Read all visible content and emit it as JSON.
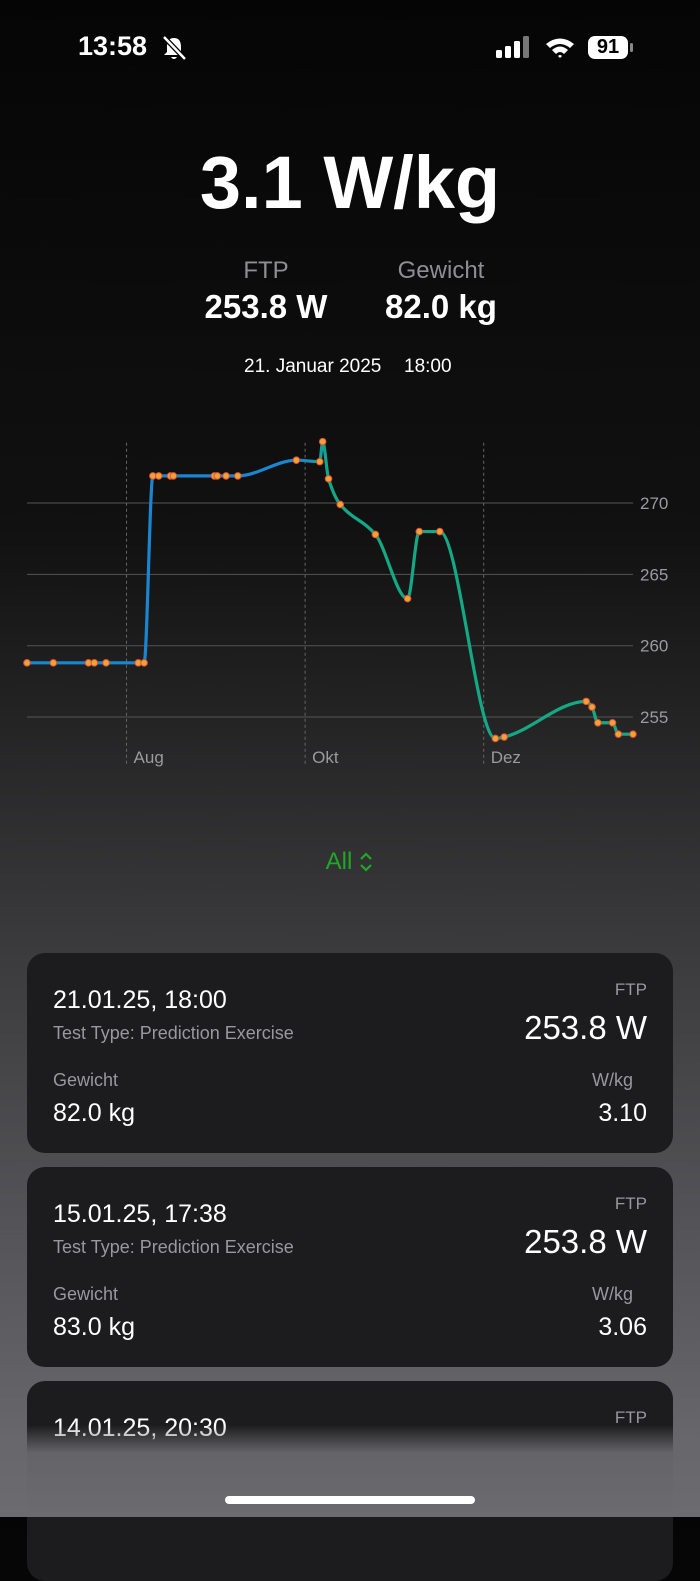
{
  "status_bar": {
    "time": "13:58",
    "battery": "91"
  },
  "summary": {
    "headline": "3.1 W/kg",
    "ftp_label": "FTP",
    "ftp_value": "253.8 W",
    "weight_label": "Gewicht",
    "weight_value": "82.0 kg",
    "date": "21. Januar 2025",
    "time": "18:00"
  },
  "chart_data": {
    "type": "line",
    "x": [
      0,
      9,
      21,
      23,
      27,
      38,
      40,
      43,
      45,
      49,
      50,
      64,
      65,
      68,
      72,
      92,
      100,
      101,
      103,
      107,
      119,
      130,
      134,
      141,
      160,
      163,
      191,
      193,
      195,
      200,
      202,
      207
    ],
    "values": [
      258.8,
      258.8,
      258.8,
      258.8,
      258.8,
      258.8,
      258.8,
      271.9,
      271.9,
      271.9,
      271.9,
      271.9,
      271.9,
      271.9,
      271.9,
      273.0,
      272.9,
      274.3,
      271.7,
      269.9,
      267.8,
      263.3,
      268.0,
      268.0,
      253.5,
      253.6,
      256.1,
      255.7,
      254.6,
      254.6,
      253.8,
      253.8
    ],
    "xlim": [
      0,
      207
    ],
    "xticks": [
      {
        "value": 34,
        "label": "Aug"
      },
      {
        "value": 95,
        "label": "Okt"
      },
      {
        "value": 156,
        "label": "Dez"
      }
    ],
    "ylim": [
      253,
      274.5
    ],
    "yticks": [
      255,
      260,
      265,
      270
    ],
    "grid": true,
    "line_colors": [
      "#1a86d1",
      "#14a884"
    ],
    "marker_color": "#f0a236",
    "marker_edge": "#d9513a"
  },
  "range_picker": {
    "label": "All"
  },
  "cards": [
    {
      "date": "21.01.25, 18:00",
      "test_type": "Test Type: Prediction Exercise",
      "ftp_label": "FTP",
      "ftp_value": "253.8 W",
      "weight_label": "Gewicht",
      "weight_value": "82.0 kg",
      "wkg_label": "W/kg",
      "wkg_value": "3.10"
    },
    {
      "date": "15.01.25, 17:38",
      "test_type": "Test Type: Prediction Exercise",
      "ftp_label": "FTP",
      "ftp_value": "253.8 W",
      "weight_label": "Gewicht",
      "weight_value": "83.0 kg",
      "wkg_label": "W/kg",
      "wkg_value": "3.06"
    },
    {
      "date": "14.01.25, 20:30",
      "ftp_label": "FTP"
    }
  ]
}
